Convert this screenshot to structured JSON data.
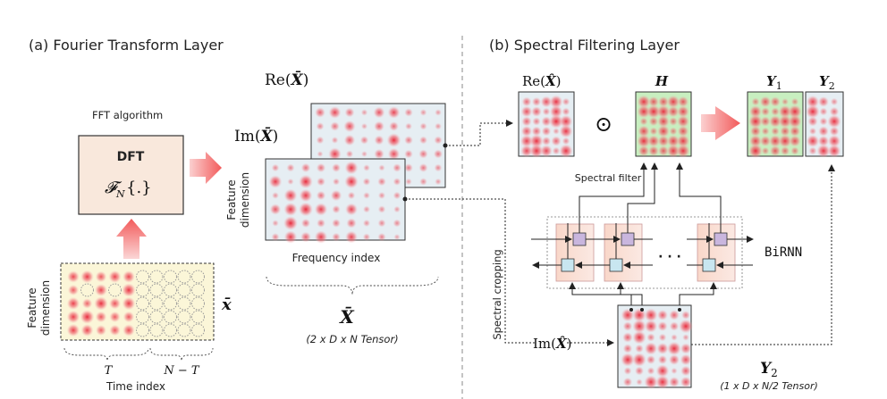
{
  "left_panel": {
    "title": "(a) Fourier Transform Layer",
    "fft_label": "FFT algorithm",
    "dft_title": "DFT",
    "dft_formula": "𝓕",
    "dft_formula_sub": "N",
    "dft_formula_tail": "{.}",
    "re_label_pre": "Re(",
    "re_label_sym": "X̄",
    "re_label_post": ")",
    "im_label_pre": "Im(",
    "im_label_sym": "X̄",
    "im_label_post": ")",
    "feature_dim_line1": "Feature",
    "feature_dim_line2": "dimension",
    "frequency_index": "Frequency index",
    "tensor_symbol": "X̄",
    "tensor_caption": "(2 x D x N Tensor)",
    "input_feature_line1": "Feature",
    "input_feature_line2": "dimension",
    "input_symbol": "x̄",
    "T_label": "T",
    "NT_label": "N − T",
    "time_index": "Time index"
  },
  "right_panel": {
    "title": "(b) Spectral Filtering Layer",
    "re_hat_pre": "Re(",
    "re_hat_sym": "X̂",
    "re_hat_post": ")",
    "odot": "⊙",
    "H_label": "H",
    "Y1_label": "Y",
    "Y1_sub": "1",
    "Y2_label": "Y",
    "Y2_sub": "2",
    "spectral_filter": "Spectral filter",
    "birnn": "BiRNN",
    "dots": "· · ·",
    "spectral_cropping": "Spectral cropping",
    "im_hat_pre": "Im(",
    "im_hat_sym": "X̂",
    "im_hat_post": ")",
    "Y2_bottom_label": "Y",
    "Y2_bottom_sub": "2",
    "Y2_caption": "(1 x D x N/2 Tensor)"
  },
  "colors": {
    "dot_red": "#e8283a",
    "panel_blue": "#e6eef3",
    "panel_green": "#c8efc0",
    "dft_fill": "#f9e8dc",
    "input_fill": "#fbf6d8",
    "arrow_red": "#f26a6a",
    "rnn_cell": "#f6d9d0",
    "rnn_top": "#c9b6de",
    "rnn_bottom": "#c8e6f0"
  }
}
